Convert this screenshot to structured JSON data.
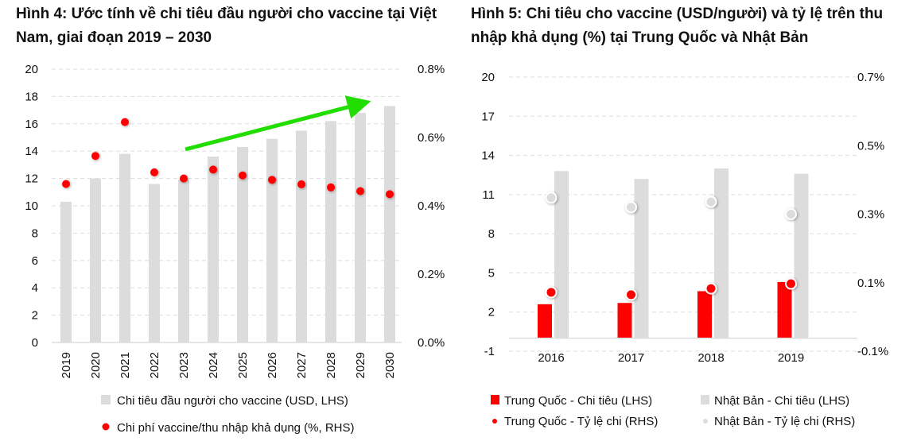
{
  "chart_data": [
    {
      "type": "bar",
      "title": "Hình 4: Ước tính về chi tiêu đầu người cho vaccine tại Việt Nam, giai đoạn 2019 – 2030",
      "categories": [
        "2019",
        "2020",
        "2021",
        "2022",
        "2023",
        "2024",
        "2025",
        "2026",
        "2027",
        "2028",
        "2029",
        "2030"
      ],
      "series": [
        {
          "name": "Chi tiêu đầu người cho vaccine (USD, LHS)",
          "kind": "bar",
          "axis": "left",
          "color": "#dcdcdc",
          "values": [
            10.3,
            12.0,
            13.8,
            11.6,
            11.9,
            13.6,
            14.3,
            14.9,
            15.5,
            16.2,
            16.8,
            17.3
          ]
        },
        {
          "name": "Chi phí vaccine/thu nhập khả dụng (%, RHS)",
          "kind": "scatter",
          "axis": "right",
          "color": "#ff0000",
          "values": [
            0.464,
            0.546,
            0.645,
            0.498,
            0.48,
            0.506,
            0.489,
            0.476,
            0.463,
            0.454,
            0.443,
            0.434
          ]
        }
      ],
      "ylim": [
        0,
        20
      ],
      "y_ticks": [
        "0",
        "2",
        "4",
        "6",
        "8",
        "10",
        "12",
        "14",
        "16",
        "18",
        "20"
      ],
      "y2lim": [
        0,
        0.8
      ],
      "y2_ticks": [
        "0.0%",
        "0.2%",
        "0.4%",
        "0.6%",
        "0.8%"
      ],
      "annotation": "green upward trend arrow",
      "arrow_color": "#22dd00",
      "grid": true,
      "legend_placement": "bottom"
    },
    {
      "type": "bar",
      "title": "Hình 5: Chi tiêu cho vaccine  (USD/người) và tỷ lệ trên thu nhập khả dụng (%) tại Trung Quốc và Nhật Bản",
      "categories": [
        "2016",
        "2017",
        "2018",
        "2019"
      ],
      "series": [
        {
          "name": "Trung Quốc - Chi tiêu (LHS)",
          "kind": "bar",
          "axis": "left",
          "color": "#ff0000",
          "values": [
            2.6,
            2.7,
            3.6,
            4.3
          ]
        },
        {
          "name": "Nhật Bản - Chi tiêu (LHS)",
          "kind": "bar",
          "axis": "left",
          "color": "#dcdcdc",
          "values": [
            12.8,
            12.2,
            13.0,
            12.6
          ]
        },
        {
          "name": "Trung Quốc - Tỷ lệ chi (RHS)",
          "kind": "scatter",
          "axis": "right",
          "color": "#ff0000",
          "values": [
            0.072,
            0.065,
            0.083,
            0.097
          ]
        },
        {
          "name": "Nhật Bản - Tỷ lệ chi (RHS)",
          "kind": "scatter",
          "axis": "right",
          "color": "#dcdcdc",
          "values": [
            0.348,
            0.32,
            0.336,
            0.3
          ]
        }
      ],
      "ylim": [
        -1,
        20
      ],
      "y_ticks": [
        "-1",
        "2",
        "5",
        "8",
        "11",
        "14",
        "17",
        "20"
      ],
      "y2lim": [
        -0.1,
        0.7
      ],
      "y2_ticks": [
        "-0.1%",
        "0.1%",
        "0.3%",
        "0.5%",
        "0.7%"
      ],
      "grid": true,
      "legend_placement": "bottom"
    }
  ]
}
